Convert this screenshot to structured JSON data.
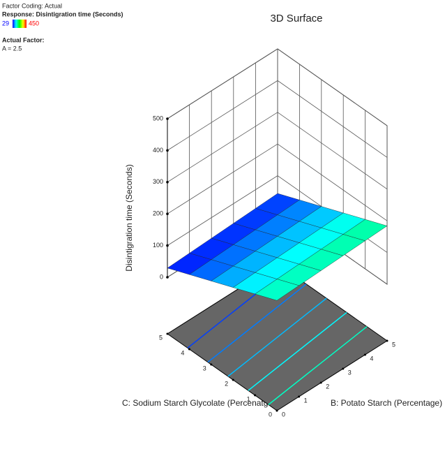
{
  "chart_data": {
    "type": "surface3d",
    "factor_coding": "Factor Coding: Actual",
    "response": "Response: Disintigration time (Seconds)",
    "actual_factor_heading": "Actual Factor:",
    "actual_factor": "A = 2.5",
    "title": "3D Surface",
    "z_label": "Disintigration time (Seconds)",
    "x_label": "C: Sodium Starch Glycolate (Percenatge)",
    "y_label": "B: Potato Starch  (Percentage)",
    "x": [
      0,
      1,
      2,
      3,
      4,
      5
    ],
    "y": [
      0,
      1,
      2,
      3,
      4,
      5
    ],
    "z": [
      [
        169,
        141,
        113,
        85,
        57,
        29
      ],
      [
        172,
        144,
        116,
        88,
        60,
        32
      ],
      [
        175,
        147,
        119,
        91,
        63,
        35
      ],
      [
        178,
        150,
        122,
        94,
        66,
        38
      ],
      [
        181,
        153,
        125,
        97,
        69,
        41
      ],
      [
        184,
        156,
        128,
        100,
        72,
        44
      ]
    ],
    "xlim": [
      0,
      5
    ],
    "xticks": [
      0,
      1,
      2,
      3,
      4,
      5
    ],
    "ylim": [
      0,
      5
    ],
    "yticks": [
      0,
      1,
      2,
      3,
      4,
      5
    ],
    "zlim": [
      0,
      500
    ],
    "zticks": [
      0,
      100,
      200,
      300,
      400,
      500
    ],
    "color_range": [
      29,
      450
    ],
    "colormap": [
      "#0000ff",
      "#00ffff",
      "#00ff00",
      "#ffff00",
      "#ff0000"
    ],
    "grid": true
  }
}
